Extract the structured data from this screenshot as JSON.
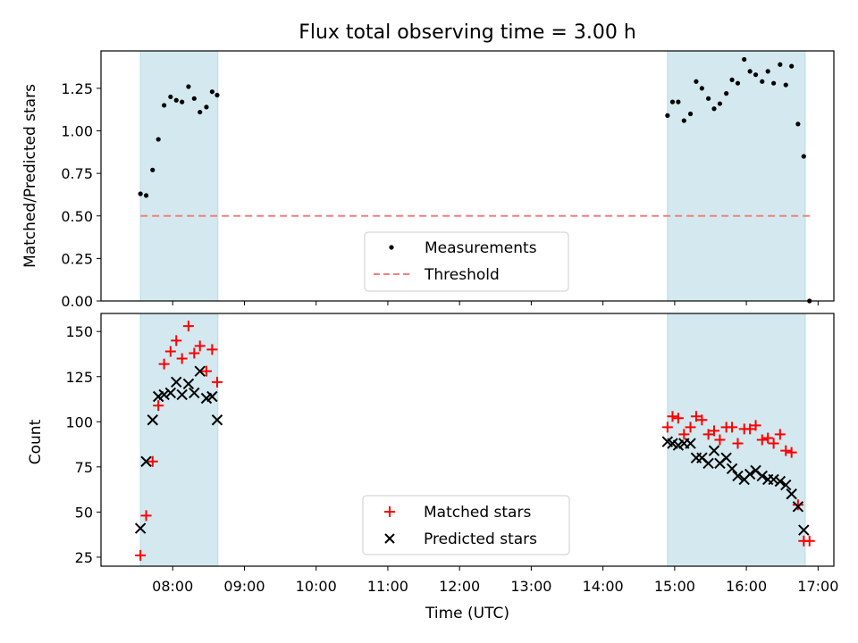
{
  "chart_data": [
    {
      "type": "scatter",
      "title": "Flux total observing time = 3.00 h",
      "xlabel": "",
      "ylabel": "Matched/Predicted stars",
      "ylim": [
        0,
        1.47
      ],
      "yticks": [
        "0.00",
        "0.25",
        "0.50",
        "0.75",
        "1.00",
        "1.25"
      ],
      "threshold": {
        "name": "Threshold",
        "value": 0.5,
        "x_range": [
          7.55,
          16.9
        ],
        "color": "#f08080",
        "style": "dashed"
      },
      "legend": {
        "position": "lower-center",
        "entries": [
          "Measurements",
          "Threshold"
        ]
      },
      "shaded_windows": [
        [
          7.55,
          8.63
        ],
        [
          14.9,
          16.82
        ]
      ],
      "series": [
        {
          "name": "Measurements",
          "marker": "dot",
          "color": "#000000",
          "x": [
            7.55,
            7.63,
            7.72,
            7.8,
            7.88,
            7.97,
            8.05,
            8.13,
            8.22,
            8.3,
            8.38,
            8.47,
            8.55,
            8.62,
            14.9,
            14.97,
            15.05,
            15.13,
            15.22,
            15.3,
            15.38,
            15.47,
            15.55,
            15.63,
            15.72,
            15.8,
            15.88,
            15.97,
            16.05,
            16.13,
            16.22,
            16.3,
            16.38,
            16.47,
            16.55,
            16.63,
            16.72,
            16.8,
            16.88
          ],
          "y": [
            0.63,
            0.62,
            0.77,
            0.95,
            1.15,
            1.2,
            1.18,
            1.17,
            1.26,
            1.19,
            1.11,
            1.14,
            1.23,
            1.21,
            1.09,
            1.17,
            1.17,
            1.06,
            1.1,
            1.29,
            1.25,
            1.19,
            1.13,
            1.16,
            1.22,
            1.3,
            1.28,
            1.42,
            1.35,
            1.33,
            1.29,
            1.35,
            1.28,
            1.39,
            1.27,
            1.38,
            1.04,
            0.85,
            0.0
          ]
        }
      ]
    },
    {
      "type": "scatter",
      "title": "",
      "xlabel": "Time (UTC)",
      "ylabel": "Count",
      "xlim": [
        7.0,
        17.22
      ],
      "ylim": [
        20,
        160
      ],
      "xticks": [
        {
          "v": 8,
          "label": "08:00"
        },
        {
          "v": 9,
          "label": "09:00"
        },
        {
          "v": 10,
          "label": "10:00"
        },
        {
          "v": 11,
          "label": "11:00"
        },
        {
          "v": 12,
          "label": "12:00"
        },
        {
          "v": 13,
          "label": "13:00"
        },
        {
          "v": 14,
          "label": "14:00"
        },
        {
          "v": 15,
          "label": "15:00"
        },
        {
          "v": 16,
          "label": "16:00"
        },
        {
          "v": 17,
          "label": "17:00"
        }
      ],
      "yticks": [
        "25",
        "50",
        "75",
        "100",
        "125",
        "150"
      ],
      "legend": {
        "position": "lower-center",
        "entries": [
          "Matched stars",
          "Predicted stars"
        ]
      },
      "shaded_windows": [
        [
          7.55,
          8.63
        ],
        [
          14.9,
          16.82
        ]
      ],
      "series": [
        {
          "name": "Matched stars",
          "marker": "plus",
          "color": "#ff0000",
          "x": [
            7.55,
            7.63,
            7.72,
            7.8,
            7.88,
            7.97,
            8.05,
            8.13,
            8.22,
            8.3,
            8.38,
            8.47,
            8.55,
            8.62,
            14.9,
            14.97,
            15.05,
            15.13,
            15.22,
            15.3,
            15.38,
            15.47,
            15.55,
            15.63,
            15.72,
            15.8,
            15.88,
            15.97,
            16.05,
            16.13,
            16.22,
            16.3,
            16.38,
            16.47,
            16.55,
            16.63,
            16.72,
            16.8,
            16.88
          ],
          "y": [
            26,
            48,
            78,
            109,
            132,
            139,
            145,
            135,
            153,
            138,
            142,
            128,
            140,
            122,
            97,
            103,
            102,
            93,
            97,
            103,
            101,
            93,
            95,
            90,
            97,
            97,
            88,
            96,
            96,
            98,
            90,
            91,
            88,
            93,
            84,
            83,
            54,
            34,
            34
          ]
        },
        {
          "name": "Predicted stars",
          "marker": "x",
          "color": "#000000",
          "x": [
            7.55,
            7.63,
            7.72,
            7.8,
            7.88,
            7.97,
            8.05,
            8.13,
            8.22,
            8.3,
            8.38,
            8.47,
            8.55,
            8.62,
            14.9,
            14.97,
            15.05,
            15.13,
            15.22,
            15.3,
            15.38,
            15.47,
            15.55,
            15.63,
            15.72,
            15.8,
            15.88,
            15.97,
            16.05,
            16.13,
            16.22,
            16.3,
            16.38,
            16.47,
            16.55,
            16.63,
            16.72,
            16.8,
            16.88
          ],
          "y": [
            41,
            78,
            101,
            114,
            115,
            116,
            122,
            115,
            121,
            116,
            128,
            113,
            114,
            101,
            89,
            88,
            87,
            88,
            88,
            80,
            80,
            77,
            84,
            77,
            80,
            74,
            70,
            68,
            71,
            73,
            70,
            68,
            68,
            67,
            65,
            60,
            53,
            40,
            null
          ]
        }
      ]
    }
  ],
  "colors": {
    "shade_fill": "#d3e9ef",
    "shade_edge": "#b7dbe3"
  }
}
